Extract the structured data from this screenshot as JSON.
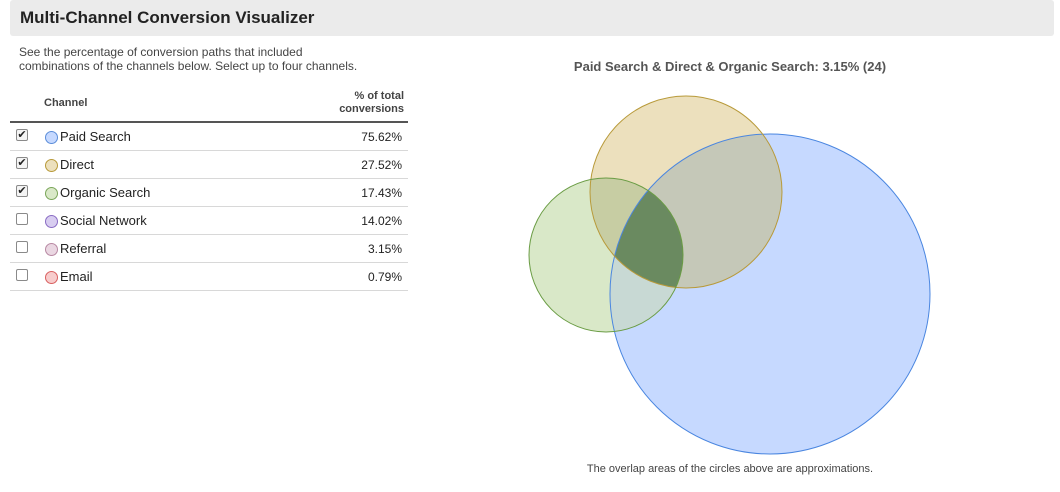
{
  "header": {
    "title": "Multi-Channel Conversion Visualizer"
  },
  "intro": {
    "line1": "See the percentage of conversion paths that included",
    "line2": "combinations of the channels below. Select up to four channels."
  },
  "table": {
    "col_channel": "Channel",
    "col_pct_line1": "% of total",
    "col_pct_line2": "conversions",
    "rows": [
      {
        "label": "Paid Search",
        "pct": "75.62%",
        "checked": true,
        "color": "#c6d9ff",
        "stroke": "#5b8dd9"
      },
      {
        "label": "Direct",
        "pct": "27.52%",
        "checked": true,
        "color": "#ece0bd",
        "stroke": "#b89a3a"
      },
      {
        "label": "Organic Search",
        "pct": "17.43%",
        "checked": true,
        "color": "#d9e8c8",
        "stroke": "#7aa659"
      },
      {
        "label": "Social Network",
        "pct": "14.02%",
        "checked": false,
        "color": "#d8cdf0",
        "stroke": "#8a6cc4"
      },
      {
        "label": "Referral",
        "pct": "3.15%",
        "checked": false,
        "color": "#ead7e2",
        "stroke": "#b889a3"
      },
      {
        "label": "Email",
        "pct": "0.79%",
        "checked": false,
        "color": "#f7cccc",
        "stroke": "#d96060"
      }
    ]
  },
  "venn": {
    "title": "Paid Search & Direct & Organic Search: 3.15% (24)",
    "note": "The overlap areas of the circles above are approximations.",
    "colors": {
      "paid_fill": "#c6d9ff",
      "paid_stroke": "#4a86e0",
      "direct_fill": "#ece0bd",
      "direct_stroke": "#b89a3a",
      "organic_fill": "#d9e8c8",
      "organic_stroke": "#6a9c44",
      "overlap_direct_paid": "#c5c8b8",
      "overlap_organic_paid": "#c8d9d4",
      "overlap_direct_organic": "#c7cda3",
      "overlap_all": "#6a8a60"
    }
  }
}
